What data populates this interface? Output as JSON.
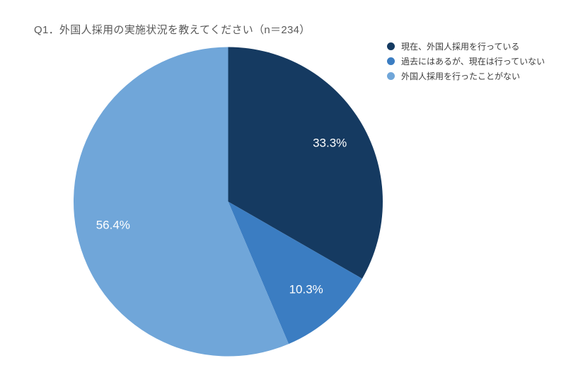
{
  "chart_data": {
    "type": "pie",
    "title": "Q1．外国人採用の実施状況を教えてください（n＝234）",
    "n": 234,
    "slices": [
      {
        "label": "現在、外国人採用を行っている",
        "value": 33.3,
        "display": "33.3%",
        "color": "#153a61"
      },
      {
        "label": "過去にはあるが、現在は行っていない",
        "value": 10.3,
        "display": "10.3%",
        "color": "#3b7dc2"
      },
      {
        "label": "外国人採用を行ったことがない",
        "value": 56.4,
        "display": "56.4%",
        "color": "#70a6d9"
      }
    ],
    "start_angle_deg": 0,
    "direction": "clockwise",
    "legend_position": "top-right",
    "label_color": "#ffffff",
    "title_color": "#595959",
    "background_color": "#ffffff"
  }
}
